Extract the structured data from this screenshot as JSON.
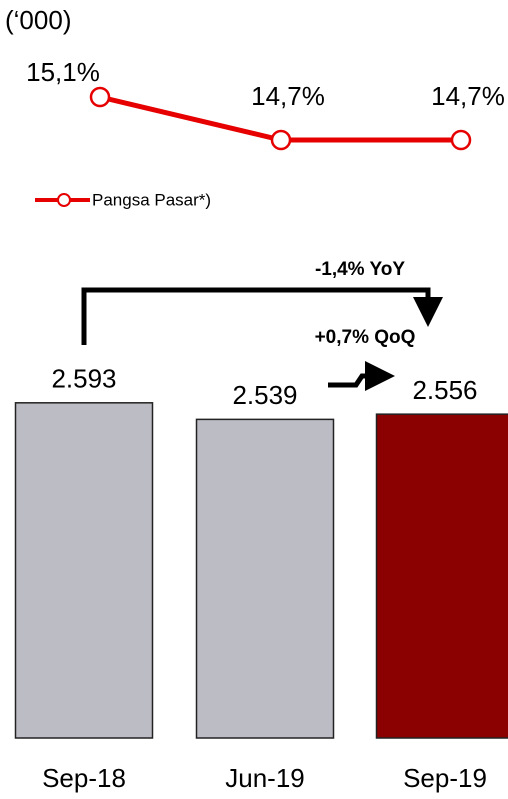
{
  "chart_data": [
    {
      "type": "line",
      "categories": [
        "Sep-18",
        "Jun-19",
        "Sep-19"
      ],
      "series": [
        {
          "name": "Pangsa Pasar*)",
          "color": "#e60000",
          "values": [
            15.1,
            14.7,
            14.7
          ],
          "value_labels": [
            "15,1%",
            "14,7%",
            "14,7%"
          ]
        }
      ],
      "ylim": [
        14.5,
        15.3
      ],
      "legend": "bottom-left"
    },
    {
      "type": "bar",
      "unit_label": "(‘000)",
      "categories": [
        "Sep-18",
        "Jun-19",
        "Sep-19"
      ],
      "values": [
        2593,
        2539,
        2556
      ],
      "value_labels": [
        "2.593",
        "2.539",
        "2.556"
      ],
      "colors": [
        "#bcbcc4",
        "#bcbcc4",
        "#8b0000"
      ],
      "ylim": [
        1500,
        2700
      ],
      "annotations": [
        "-1,4% YoY",
        "+0,7% QoQ"
      ]
    }
  ]
}
